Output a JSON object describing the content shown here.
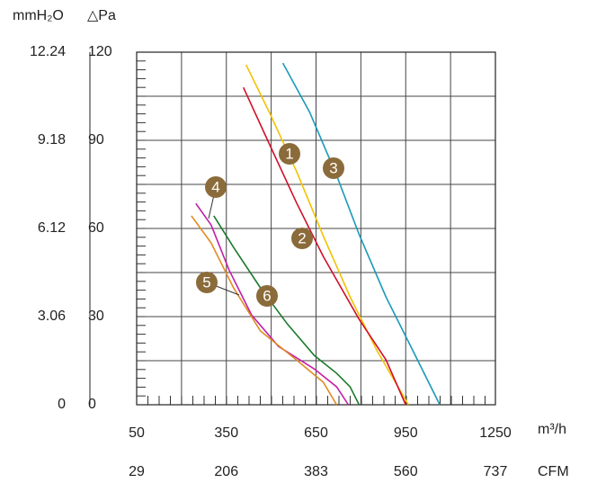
{
  "chart_data": {
    "type": "line",
    "y_unit_label": "△Pa",
    "y2_unit_label": "mmH₂O",
    "x_unit_label": "m³/h",
    "x2_unit_label": "CFM",
    "xlim": [
      50,
      1250
    ],
    "xticks": [
      50,
      350,
      650,
      950,
      1250
    ],
    "x2lim": [
      29,
      737
    ],
    "x2ticks": [
      29,
      206,
      383,
      560,
      737
    ],
    "ylim": [
      0,
      120
    ],
    "yticks": [
      0,
      30,
      60,
      90,
      120
    ],
    "y2lim": [
      0,
      12.24
    ],
    "y2ticks": [
      0,
      3.06,
      6.12,
      9.18,
      12.24
    ],
    "grid": true,
    "series": [
      {
        "name": "1",
        "color": "#f2c200",
        "x": [
          416,
          494,
          584,
          674,
          764,
          854,
          959
        ],
        "values": [
          115.7,
          99.5,
          79.6,
          57.5,
          36.7,
          18.4,
          0
        ]
      },
      {
        "name": "2",
        "color": "#d0102a",
        "x": [
          407,
          494,
          584,
          674,
          794,
          884,
          950
        ],
        "values": [
          108,
          88.7,
          68.9,
          50.5,
          29.1,
          15.3,
          0
        ]
      },
      {
        "name": "3",
        "color": "#1a9ab8",
        "x": [
          539,
          629,
          719,
          794,
          884,
          974,
          1064
        ],
        "values": [
          116.3,
          99.5,
          78,
          58,
          36.7,
          18.4,
          0
        ]
      },
      {
        "name": "4",
        "color": "#c21fa8",
        "x": [
          248,
          299,
          359,
          434,
          524,
          644,
          719,
          758
        ],
        "values": [
          68.5,
          61.2,
          45.9,
          30.6,
          19.9,
          12.2,
          6.1,
          0
        ]
      },
      {
        "name": "5",
        "color": "#e08a20",
        "x": [
          233,
          299,
          374,
          464,
          584,
          674,
          719
        ],
        "values": [
          64.3,
          55.1,
          39.8,
          25.1,
          15.3,
          7.7,
          0
        ]
      },
      {
        "name": "6",
        "color": "#1a7a2a",
        "x": [
          308,
          374,
          464,
          554,
          644,
          719,
          764,
          794
        ],
        "values": [
          64.3,
          53.6,
          39.8,
          27.5,
          16.8,
          10.7,
          6.1,
          0
        ]
      }
    ]
  }
}
